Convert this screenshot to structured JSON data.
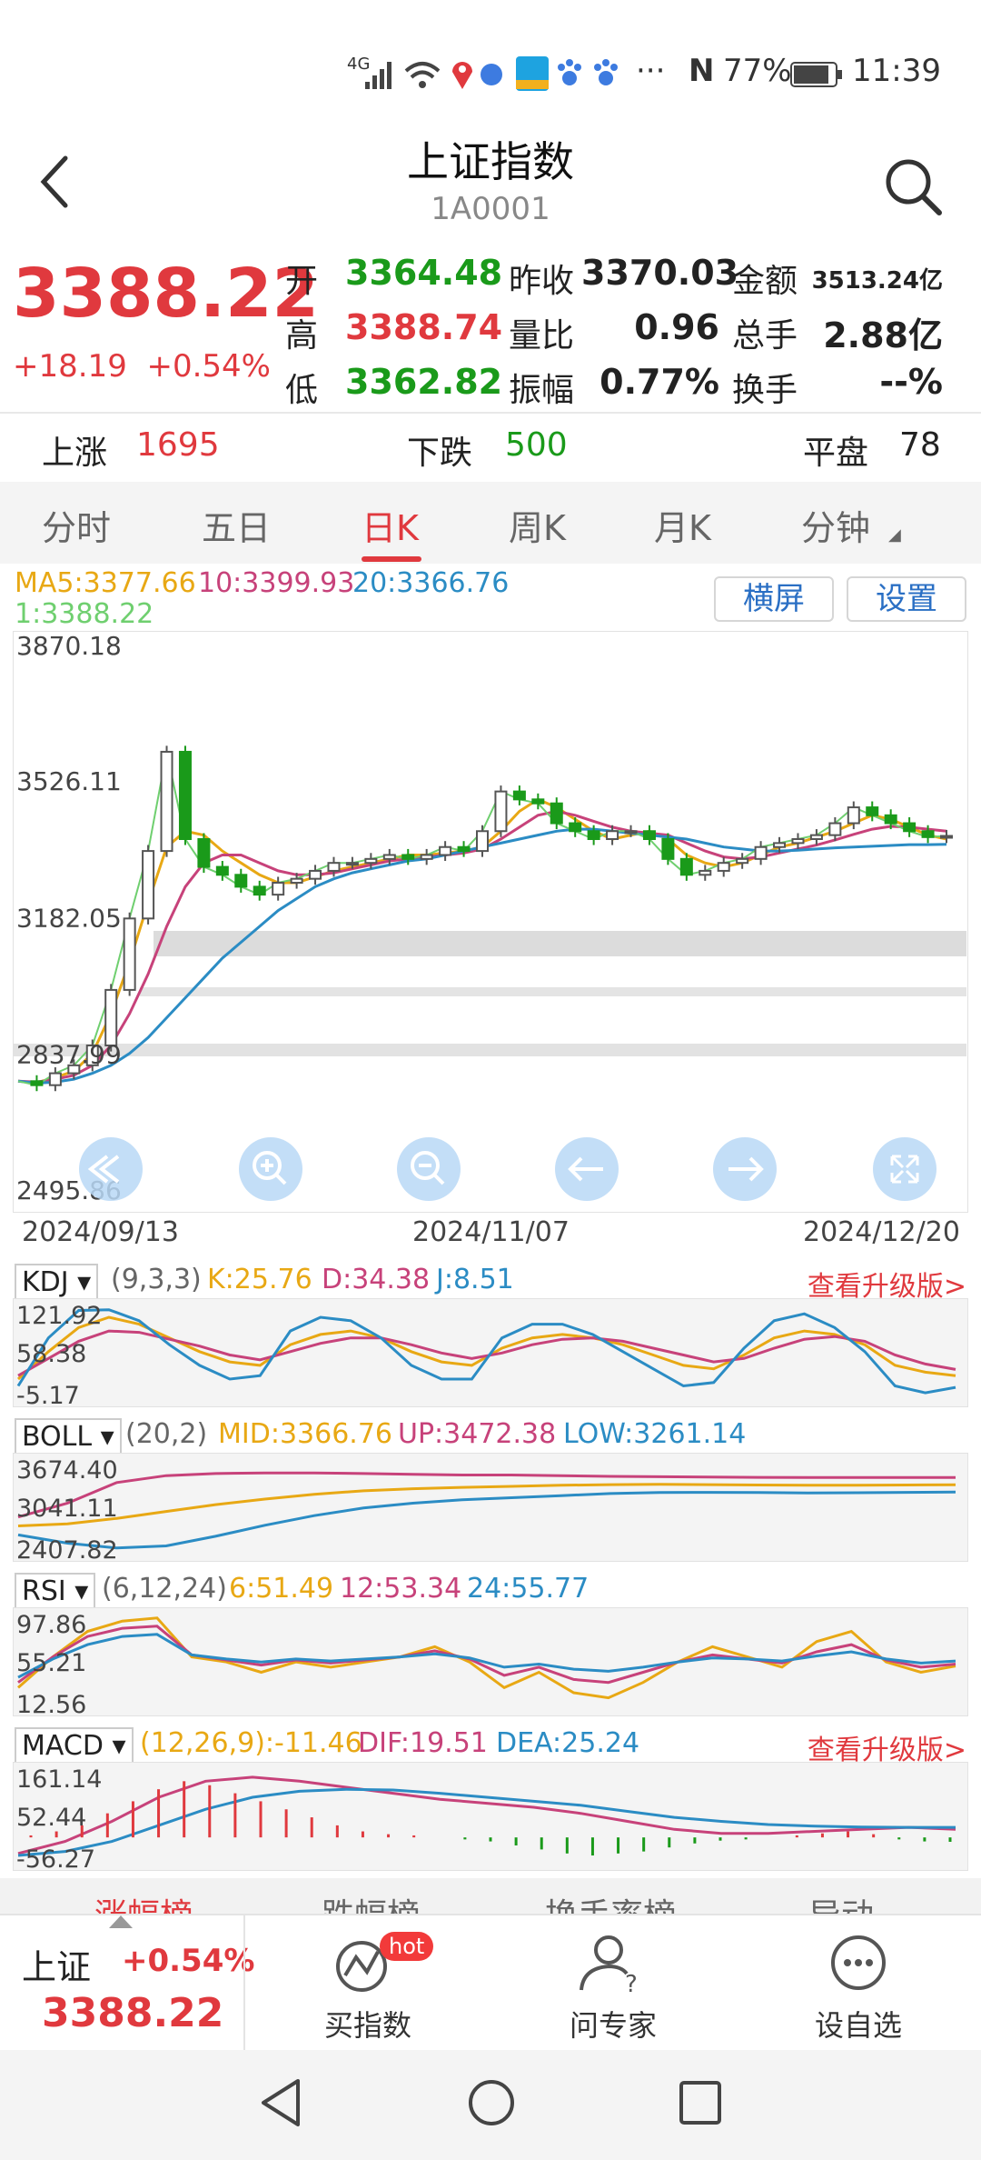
{
  "status_bar": {
    "network": "4G",
    "nfc": "N",
    "battery": "77%",
    "time": "11:39"
  },
  "header": {
    "title": "上证指数",
    "code": "1A0001"
  },
  "quote": {
    "price": "3388.22",
    "change": "+18.19",
    "change_pct": "+0.54%",
    "fields": [
      {
        "label": "开",
        "value": "3364.48",
        "tone": "green"
      },
      {
        "label": "高",
        "value": "3388.74",
        "tone": "red"
      },
      {
        "label": "低",
        "value": "3362.82",
        "tone": "green"
      },
      {
        "label": "昨收",
        "value": "3370.03",
        "tone": "plain"
      },
      {
        "label": "量比",
        "value": "0.96",
        "tone": "plain"
      },
      {
        "label": "振幅",
        "value": "0.77%",
        "tone": "plain"
      },
      {
        "label": "金额",
        "value": "3513.24亿",
        "tone": "plain"
      },
      {
        "label": "总手",
        "value": "2.88亿",
        "tone": "plain"
      },
      {
        "label": "换手",
        "value": "--%",
        "tone": "plain"
      }
    ]
  },
  "breadth": {
    "up_label": "上涨",
    "up": "1695",
    "down_label": "下跌",
    "down": "500",
    "flat_label": "平盘",
    "flat": "78"
  },
  "tabs": [
    {
      "label": "分时"
    },
    {
      "label": "五日"
    },
    {
      "label": "日K",
      "active": true
    },
    {
      "label": "周K"
    },
    {
      "label": "月K"
    },
    {
      "label": "分钟"
    }
  ],
  "ma_legend": {
    "ma5": "MA5:3377.66",
    "ma10": "10:3399.93",
    "ma20": "20:3366.76",
    "ma1": "1:3388.22"
  },
  "price_buttons": {
    "landscape": "横屏",
    "settings": "设置"
  },
  "colors": {
    "red": "#e0393e",
    "green": "#1a9a1a",
    "ma5": "#e8a814",
    "ma10": "#c7427a",
    "ma20": "#2b8cc4",
    "ma1": "#6fcf6f"
  },
  "chart_data": [
    {
      "type": "candlestick",
      "name": "日K",
      "y_ticks": [
        "3870.18",
        "3526.11",
        "3182.05",
        "2837.99",
        "2495.86"
      ],
      "ylim": [
        2495.86,
        3870.18
      ],
      "x_labels": [
        "2024/09/13",
        "2024/11/07",
        "2024/12/20"
      ],
      "series": [
        {
          "name": "MA5",
          "values": [
            2770,
            2766,
            2780,
            2795,
            2840,
            2940,
            3070,
            3220,
            3360,
            3400,
            3390,
            3350,
            3320,
            3290,
            3270,
            3270,
            3285,
            3300,
            3310,
            3320,
            3330,
            3340,
            3340,
            3345,
            3350,
            3360,
            3400,
            3450,
            3480,
            3460,
            3430,
            3400,
            3380,
            3390,
            3400,
            3380,
            3340,
            3320,
            3310,
            3320,
            3340,
            3360,
            3370,
            3385,
            3400,
            3420,
            3440,
            3430,
            3410,
            3390,
            3380
          ]
        },
        {
          "name": "MA10",
          "values": [
            2770,
            2768,
            2775,
            2785,
            2810,
            2860,
            2940,
            3040,
            3160,
            3260,
            3320,
            3340,
            3340,
            3320,
            3300,
            3290,
            3290,
            3295,
            3305,
            3315,
            3325,
            3330,
            3335,
            3340,
            3345,
            3355,
            3380,
            3410,
            3440,
            3450,
            3440,
            3425,
            3410,
            3400,
            3395,
            3390,
            3370,
            3350,
            3335,
            3330,
            3335,
            3345,
            3355,
            3365,
            3378,
            3392,
            3405,
            3412,
            3410,
            3405,
            3400
          ]
        },
        {
          "name": "MA20",
          "values": [
            2770,
            2765,
            2768,
            2775,
            2790,
            2810,
            2840,
            2880,
            2930,
            2980,
            3030,
            3080,
            3120,
            3160,
            3200,
            3230,
            3260,
            3280,
            3295,
            3305,
            3315,
            3325,
            3330,
            3340,
            3350,
            3360,
            3370,
            3380,
            3390,
            3400,
            3405,
            3405,
            3400,
            3395,
            3390,
            3385,
            3380,
            3370,
            3360,
            3355,
            3350,
            3350,
            3352,
            3355,
            3358,
            3360,
            3362,
            3364,
            3366,
            3366,
            3367
          ]
        },
        {
          "name": "1",
          "values": [
            2770,
            2760,
            2790,
            2810,
            2860,
            3000,
            3180,
            3350,
            3600,
            3380,
            3310,
            3290,
            3260,
            3240,
            3270,
            3280,
            3300,
            3320,
            3320,
            3330,
            3340,
            3330,
            3340,
            3360,
            3350,
            3400,
            3500,
            3480,
            3470,
            3420,
            3400,
            3380,
            3400,
            3400,
            3380,
            3330,
            3290,
            3300,
            3320,
            3330,
            3360,
            3370,
            3380,
            3390,
            3420,
            3460,
            3440,
            3420,
            3400,
            3385,
            3388
          ]
        }
      ]
    },
    {
      "type": "line",
      "name": "KDJ",
      "params": "(9,3,3)",
      "legend": {
        "k": "K:25.76",
        "d": "D:34.38",
        "j": "J:8.51"
      },
      "y_ticks": [
        "121.92",
        "58.38",
        "-5.17"
      ],
      "ylim": [
        -5.17,
        121.92
      ],
      "series": [
        {
          "name": "K",
          "values": [
            20,
            60,
            95,
            110,
            100,
            80,
            60,
            45,
            40,
            70,
            85,
            90,
            80,
            60,
            45,
            40,
            65,
            80,
            85,
            80,
            70,
            55,
            40,
            35,
            55,
            80,
            90,
            85,
            70,
            40,
            30,
            25
          ]
        },
        {
          "name": "D",
          "values": [
            25,
            50,
            75,
            90,
            88,
            78,
            68,
            55,
            48,
            60,
            72,
            80,
            80,
            70,
            58,
            50,
            58,
            70,
            78,
            80,
            75,
            65,
            55,
            45,
            50,
            65,
            78,
            82,
            75,
            55,
            42,
            34
          ]
        },
        {
          "name": "J",
          "values": [
            10,
            80,
            120,
            121,
            105,
            70,
            40,
            20,
            25,
            90,
            110,
            105,
            80,
            40,
            20,
            20,
            80,
            100,
            100,
            85,
            60,
            35,
            10,
            15,
            65,
            105,
            115,
            95,
            60,
            10,
            0,
            8
          ]
        }
      ]
    },
    {
      "type": "line",
      "name": "BOLL",
      "params": "(20,2)",
      "legend": {
        "mid": "MID:3366.76",
        "up": "UP:3472.38",
        "low": "LOW:3261.14"
      },
      "y_ticks": [
        "3674.40",
        "3041.11",
        "2407.82"
      ],
      "ylim": [
        2407.82,
        3674.4
      ],
      "series": [
        {
          "name": "MID",
          "values": [
            2770,
            2800,
            2880,
            2980,
            3080,
            3160,
            3230,
            3280,
            3310,
            3330,
            3345,
            3360,
            3370,
            3375,
            3370,
            3365,
            3360,
            3362,
            3365,
            3367
          ]
        },
        {
          "name": "UP",
          "values": [
            2900,
            3100,
            3400,
            3500,
            3530,
            3540,
            3540,
            3530,
            3520,
            3510,
            3510,
            3500,
            3490,
            3485,
            3480,
            3475,
            3472,
            3472,
            3472,
            3472
          ]
        },
        {
          "name": "LOW",
          "values": [
            2640,
            2520,
            2450,
            2480,
            2620,
            2780,
            2920,
            3030,
            3100,
            3150,
            3180,
            3210,
            3240,
            3255,
            3258,
            3255,
            3250,
            3252,
            3258,
            3261
          ]
        }
      ]
    },
    {
      "type": "line",
      "name": "RSI",
      "params": "(6,12,24)",
      "legend": {
        "r6": "6:51.49",
        "r12": "12:53.34",
        "r24": "24:55.77"
      },
      "y_ticks": [
        "97.86",
        "55.21",
        "12.56"
      ],
      "ylim": [
        12.56,
        97.86
      ],
      "series": [
        {
          "name": "6",
          "values": [
            30,
            60,
            85,
            95,
            98,
            60,
            55,
            45,
            55,
            50,
            55,
            60,
            70,
            55,
            30,
            45,
            25,
            20,
            35,
            55,
            70,
            60,
            50,
            75,
            85,
            55,
            45,
            51
          ]
        },
        {
          "name": "12",
          "values": [
            35,
            60,
            80,
            88,
            90,
            62,
            57,
            52,
            57,
            54,
            57,
            60,
            66,
            58,
            42,
            50,
            38,
            35,
            45,
            55,
            62,
            58,
            54,
            65,
            72,
            57,
            50,
            53
          ]
        },
        {
          "name": "24",
          "values": [
            40,
            58,
            72,
            80,
            82,
            62,
            58,
            55,
            58,
            56,
            58,
            60,
            63,
            59,
            50,
            53,
            48,
            46,
            50,
            55,
            59,
            58,
            56,
            61,
            65,
            58,
            54,
            56
          ]
        }
      ]
    },
    {
      "type": "bar+line",
      "name": "MACD",
      "params": "(12,26,9):-11.46",
      "legend": {
        "dif": "DIF:19.51",
        "dea": "DEA:25.24"
      },
      "y_ticks": [
        "161.14",
        "52.44",
        "-56.27"
      ],
      "ylim": [
        -56.27,
        161.14
      ],
      "series": [
        {
          "name": "DIF",
          "values": [
            -40,
            -10,
            40,
            100,
            140,
            150,
            140,
            125,
            110,
            95,
            85,
            75,
            60,
            40,
            20,
            10,
            10,
            15,
            20,
            25,
            20
          ]
        },
        {
          "name": "DEA",
          "values": [
            -45,
            -35,
            -10,
            30,
            70,
            100,
            115,
            120,
            118,
            110,
            100,
            90,
            80,
            65,
            50,
            40,
            32,
            28,
            26,
            25,
            25
          ]
        },
        {
          "name": "MACD",
          "values": [
            5,
            15,
            30,
            60,
            90,
            120,
            140,
            130,
            110,
            90,
            70,
            50,
            30,
            15,
            8,
            5,
            0,
            -5,
            -10,
            -20,
            -30,
            -40,
            -45,
            -40,
            -35,
            -25,
            -15,
            -8,
            -5,
            0,
            5,
            10,
            15,
            8,
            -5,
            -10,
            -11
          ]
        }
      ]
    }
  ],
  "kdj_upgrade": "查看升级版>",
  "macd_upgrade": "查看升级版>",
  "partial_tabs": [
    "涨幅榜",
    "跌幅榜",
    "换手率榜",
    "异动"
  ],
  "bottom_bar": {
    "mini_name": "上证",
    "mini_pct": "+0.54%",
    "mini_price": "3388.22",
    "buy_index": "买指数",
    "hot": "hot",
    "ask_expert": "问专家",
    "watchlist": "设自选"
  }
}
